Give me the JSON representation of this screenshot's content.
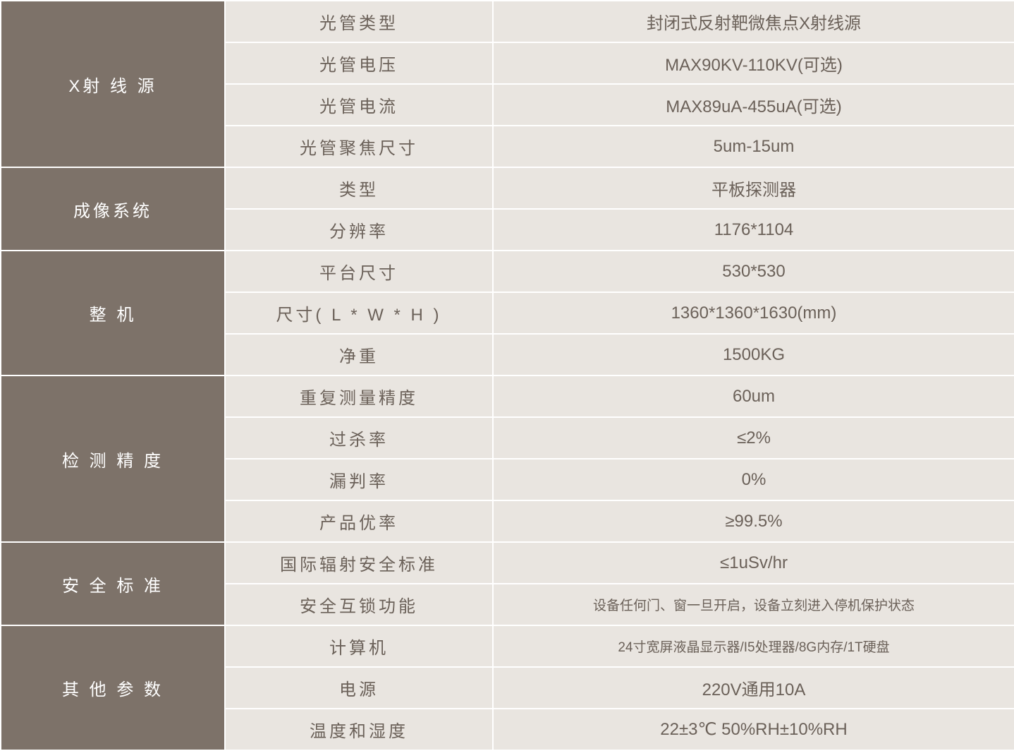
{
  "table": {
    "columns": {
      "category_width": 318,
      "param_width": 380,
      "value_width": 740
    },
    "colors": {
      "category_bg": "#7d7269",
      "category_text": "#ffffff",
      "cell_bg": "#e9e5e0",
      "cell_text": "#6b6159",
      "border": "#ffffff"
    },
    "font_sizes": {
      "category": 24,
      "param": 24,
      "value": 24,
      "value_small": 19
    },
    "sections": [
      {
        "category": "X射 线 源",
        "rows": [
          {
            "param": "光管类型",
            "value": "封闭式反射靶微焦点X射线源"
          },
          {
            "param": "光管电压",
            "value": "MAX90KV-110KV(可选)"
          },
          {
            "param": "光管电流",
            "value": "MAX89uA-455uA(可选)"
          },
          {
            "param": "光管聚焦尺寸",
            "value": "5um-15um"
          }
        ]
      },
      {
        "category": "成像系统",
        "rows": [
          {
            "param": "类型",
            "value": "平板探测器"
          },
          {
            "param": "分辨率",
            "value": "1176*1104"
          }
        ]
      },
      {
        "category": "整 机",
        "rows": [
          {
            "param": "平台尺寸",
            "value": "530*530"
          },
          {
            "param": "尺寸( L * W * H )",
            "value": "1360*1360*1630(mm)"
          },
          {
            "param": "净重",
            "value": "1500KG"
          }
        ]
      },
      {
        "category": "检 测 精 度",
        "rows": [
          {
            "param": "重复测量精度",
            "value": "60um"
          },
          {
            "param": "过杀率",
            "value": "≤2%"
          },
          {
            "param": "漏判率",
            "value": "0%"
          },
          {
            "param": "产品优率",
            "value": "≥99.5%"
          }
        ]
      },
      {
        "category": "安 全 标 准",
        "rows": [
          {
            "param": "国际辐射安全标准",
            "value": "≤1uSv/hr"
          },
          {
            "param": "安全互锁功能",
            "value": "设备任何门、窗一旦开启，设备立刻进入停机保护状态",
            "small": true
          }
        ]
      },
      {
        "category": "其 他 参 数",
        "rows": [
          {
            "param": "计算机",
            "value": "24寸宽屏液晶显示器/I5处理器/8G内存/1T硬盘",
            "small": true
          },
          {
            "param": "电源",
            "value": "220V通用10A"
          },
          {
            "param": "温度和湿度",
            "value": "22±3℃  50%RH±10%RH"
          }
        ]
      }
    ]
  }
}
